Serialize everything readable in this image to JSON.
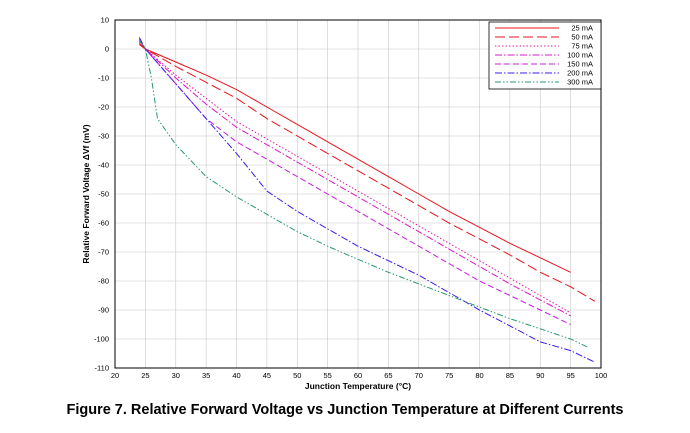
{
  "caption": "Figure 7. Relative Forward Voltage vs Junction Temperature at Different Currents",
  "chart_data": {
    "type": "line",
    "title": "",
    "xlabel": "Junction Temperature (°C)",
    "ylabel": "Relative Forward Voltage ΔVf (mV)",
    "xlim": [
      20,
      100
    ],
    "ylim": [
      -110,
      10
    ],
    "xticks": [
      20,
      25,
      30,
      35,
      40,
      45,
      50,
      55,
      60,
      65,
      70,
      75,
      80,
      85,
      90,
      95,
      100
    ],
    "yticks": [
      10,
      0,
      -10,
      -20,
      -30,
      -40,
      -50,
      -60,
      -70,
      -80,
      -90,
      -100,
      -110
    ],
    "grid": true,
    "legend_position": "top-right",
    "series": [
      {
        "name": "25 mA",
        "color": "#e8141c",
        "dash": "solid",
        "x": [
          24,
          25,
          30,
          35,
          40,
          45,
          50,
          55,
          60,
          65,
          70,
          75,
          80,
          85,
          90,
          95
        ],
        "y": [
          1.5,
          0,
          -4.5,
          -9,
          -14,
          -20,
          -26,
          -32,
          -38,
          -44,
          -50,
          -56,
          -61.5,
          -67,
          -72,
          -77
        ]
      },
      {
        "name": "50 mA",
        "color": "#e8141c",
        "dash": "long",
        "x": [
          24,
          25,
          30,
          35,
          40,
          45,
          50,
          55,
          60,
          65,
          70,
          75,
          80,
          85,
          90,
          95,
          99
        ],
        "y": [
          2,
          0,
          -6,
          -11.5,
          -17,
          -24,
          -30,
          -36,
          -42,
          -48,
          -54,
          -60,
          -65.5,
          -71,
          -77,
          -82,
          -87
        ]
      },
      {
        "name": "75 mA",
        "color": "#e0189c",
        "dash": "dotted",
        "x": [
          24,
          25,
          30,
          35,
          40,
          45,
          50,
          55,
          60,
          65,
          70,
          75,
          80,
          85,
          90,
          95
        ],
        "y": [
          2.5,
          0,
          -9,
          -17,
          -25,
          -31,
          -37,
          -43,
          -49,
          -55,
          -61,
          -67,
          -73,
          -79,
          -85,
          -91
        ]
      },
      {
        "name": "100 mA",
        "color": "#d818c8",
        "dash": "dashdot",
        "x": [
          24,
          25,
          30,
          35,
          40,
          45,
          50,
          55,
          60,
          65,
          70,
          75,
          80,
          85,
          90,
          95
        ],
        "y": [
          3,
          0,
          -10,
          -19,
          -27,
          -33,
          -39,
          -45,
          -51,
          -57,
          -63,
          -69,
          -75,
          -81,
          -86.5,
          -92
        ]
      },
      {
        "name": "150 mA",
        "color": "#c81ce0",
        "dash": "medium",
        "x": [
          24,
          25,
          30,
          35,
          40,
          45,
          50,
          55,
          60,
          65,
          70,
          75,
          80,
          85,
          90,
          95
        ],
        "y": [
          3.5,
          0,
          -12,
          -24,
          -32,
          -38,
          -44,
          -50,
          -56,
          -62,
          -68,
          -74,
          -80,
          -85,
          -90,
          -95
        ]
      },
      {
        "name": "200 mA",
        "color": "#3c1ce8",
        "dash": "dashdot",
        "x": [
          24,
          25,
          30,
          35,
          40,
          45,
          50,
          55,
          60,
          65,
          70,
          75,
          80,
          85,
          90,
          95,
          99
        ],
        "y": [
          4,
          0,
          -12,
          -24,
          -36,
          -49,
          -56,
          -62,
          -68,
          -73,
          -78,
          -84,
          -90,
          -95.5,
          -101,
          -104,
          -108
        ]
      },
      {
        "name": "300 mA",
        "color": "#2a9a6c",
        "dash": "dashdotdot",
        "x": [
          24,
          25,
          26,
          27,
          30,
          35,
          40,
          45,
          50,
          55,
          60,
          65,
          70,
          75,
          80,
          85,
          90,
          95,
          98
        ],
        "y": [
          3,
          0,
          -10,
          -24,
          -33,
          -44,
          -51,
          -57,
          -63,
          -68,
          -72.5,
          -77,
          -81,
          -85,
          -89,
          -93,
          -96.5,
          -100,
          -103
        ]
      }
    ]
  }
}
